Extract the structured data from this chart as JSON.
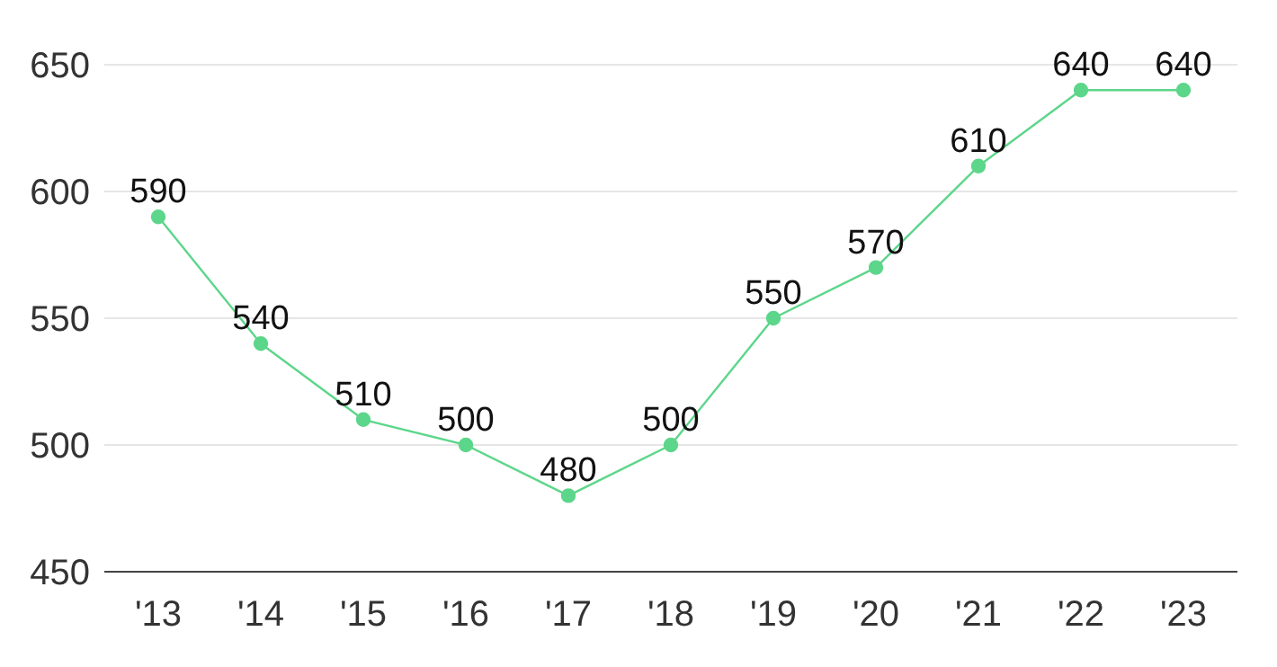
{
  "chart_data": {
    "type": "line",
    "categories": [
      "'13",
      "'14",
      "'15",
      "'16",
      "'17",
      "'18",
      "'19",
      "'20",
      "'21",
      "'22",
      "'23"
    ],
    "series": [
      {
        "color": "#5cd68a",
        "values": [
          590,
          540,
          510,
          500,
          480,
          500,
          550,
          570,
          610,
          640,
          640
        ]
      }
    ],
    "ylim": [
      450,
      650
    ],
    "yticks": [
      450,
      500,
      550,
      600,
      650
    ],
    "grid": "y",
    "marker": "circle",
    "line_style": "solid",
    "data_labels": true
  }
}
